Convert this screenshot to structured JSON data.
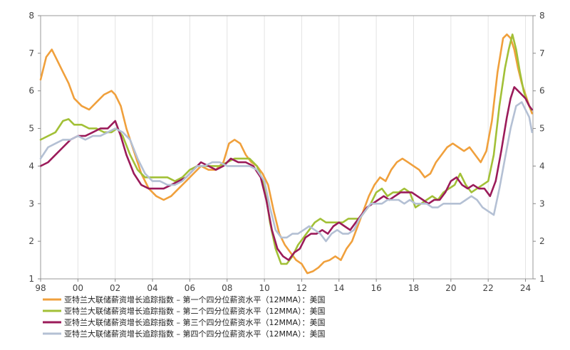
{
  "chart_data": {
    "type": "line",
    "title": "",
    "xlabel": "",
    "ylabel": "",
    "xlim": [
      1998.0,
      2024.4
    ],
    "ylim": [
      1,
      8
    ],
    "x_ticks": [
      {
        "value": 1998,
        "label": "98"
      },
      {
        "value": 2000,
        "label": "00"
      },
      {
        "value": 2002,
        "label": "02"
      },
      {
        "value": 2004,
        "label": "04"
      },
      {
        "value": 2006,
        "label": "06"
      },
      {
        "value": 2008,
        "label": "08"
      },
      {
        "value": 2010,
        "label": "10"
      },
      {
        "value": 2012,
        "label": "12"
      },
      {
        "value": 2014,
        "label": "14"
      },
      {
        "value": 2016,
        "label": "16"
      },
      {
        "value": 2018,
        "label": "18"
      },
      {
        "value": 2020,
        "label": "20"
      },
      {
        "value": 2022,
        "label": "22"
      },
      {
        "value": 2024,
        "label": "24"
      }
    ],
    "y_ticks": [
      {
        "value": 1,
        "label": "1"
      },
      {
        "value": 2,
        "label": "2"
      },
      {
        "value": 3,
        "label": "3"
      },
      {
        "value": 4,
        "label": "4"
      },
      {
        "value": 5,
        "label": "5"
      },
      {
        "value": 6,
        "label": "6"
      },
      {
        "value": 7,
        "label": "7"
      },
      {
        "value": 8,
        "label": "8"
      }
    ],
    "grid": "vertical",
    "legend_position": "bottom-left",
    "series": [
      {
        "name": "亚特兰大联储薪资增长追踪指数 – 第一个四分位薪资水平（12MMA）：美国",
        "color": "#f0a03c",
        "x": [
          1998.0,
          1998.3,
          1998.6,
          1998.9,
          1999.2,
          1999.5,
          1999.8,
          2000.2,
          2000.6,
          2001.0,
          2001.4,
          2001.8,
          2002.0,
          2002.3,
          2002.6,
          2003.0,
          2003.4,
          2003.8,
          2004.2,
          2004.6,
          2005.0,
          2005.4,
          2005.8,
          2006.2,
          2006.6,
          2007.0,
          2007.4,
          2007.8,
          2008.1,
          2008.4,
          2008.7,
          2009.0,
          2009.3,
          2009.6,
          2009.9,
          2010.2,
          2010.5,
          2010.8,
          2011.1,
          2011.4,
          2011.7,
          2012.0,
          2012.3,
          2012.6,
          2012.9,
          2013.2,
          2013.5,
          2013.8,
          2014.1,
          2014.4,
          2014.7,
          2015.0,
          2015.3,
          2015.6,
          2015.9,
          2016.2,
          2016.5,
          2016.8,
          2017.1,
          2017.4,
          2017.7,
          2018.0,
          2018.3,
          2018.6,
          2018.9,
          2019.2,
          2019.5,
          2019.8,
          2020.1,
          2020.4,
          2020.7,
          2021.0,
          2021.3,
          2021.6,
          2021.9,
          2022.2,
          2022.5,
          2022.8,
          2023.0,
          2023.2,
          2023.4,
          2023.6,
          2023.8,
          2024.0,
          2024.2,
          2024.35
        ],
        "y": [
          6.3,
          6.9,
          7.1,
          6.8,
          6.5,
          6.2,
          5.8,
          5.6,
          5.5,
          5.7,
          5.9,
          6.0,
          5.9,
          5.6,
          5.0,
          4.4,
          3.8,
          3.4,
          3.2,
          3.1,
          3.2,
          3.4,
          3.6,
          3.8,
          4.0,
          3.9,
          3.9,
          4.1,
          4.6,
          4.7,
          4.6,
          4.3,
          4.1,
          4.0,
          3.8,
          3.5,
          2.8,
          2.2,
          1.9,
          1.7,
          1.5,
          1.4,
          1.15,
          1.2,
          1.3,
          1.45,
          1.5,
          1.6,
          1.5,
          1.8,
          2.0,
          2.4,
          2.8,
          3.2,
          3.5,
          3.7,
          3.6,
          3.9,
          4.1,
          4.2,
          4.1,
          4.0,
          3.9,
          3.7,
          3.8,
          4.1,
          4.3,
          4.5,
          4.6,
          4.5,
          4.4,
          4.5,
          4.3,
          4.1,
          4.4,
          5.2,
          6.5,
          7.4,
          7.5,
          7.4,
          7.1,
          6.6,
          6.2,
          5.9,
          5.6,
          5.4
        ]
      },
      {
        "name": "亚特兰大联储薪资增长追踪指数 – 第二个四分位薪资水平（12MMA）：美国",
        "color": "#a2c037",
        "x": [
          1998.0,
          1998.4,
          1998.8,
          1999.2,
          1999.5,
          1999.8,
          2000.2,
          2000.6,
          2001.0,
          2001.4,
          2001.8,
          2002.1,
          2002.4,
          2002.8,
          2003.2,
          2003.6,
          2004.0,
          2004.4,
          2004.8,
          2005.2,
          2005.6,
          2006.0,
          2006.4,
          2006.8,
          2007.2,
          2007.6,
          2008.0,
          2008.4,
          2008.8,
          2009.2,
          2009.6,
          2010.0,
          2010.3,
          2010.6,
          2010.9,
          2011.2,
          2011.5,
          2011.8,
          2012.1,
          2012.4,
          2012.7,
          2013.0,
          2013.3,
          2013.6,
          2013.9,
          2014.2,
          2014.5,
          2014.8,
          2015.1,
          2015.4,
          2015.7,
          2016.0,
          2016.3,
          2016.6,
          2016.9,
          2017.2,
          2017.5,
          2017.8,
          2018.1,
          2018.4,
          2018.7,
          2019.0,
          2019.3,
          2019.6,
          2019.9,
          2020.2,
          2020.5,
          2020.8,
          2021.1,
          2021.4,
          2021.7,
          2022.0,
          2022.3,
          2022.6,
          2022.9,
          2023.1,
          2023.3,
          2023.5,
          2023.7,
          2023.9,
          2024.1,
          2024.3
        ],
        "y": [
          4.7,
          4.8,
          4.9,
          5.2,
          5.25,
          5.1,
          5.1,
          5.0,
          5.0,
          4.9,
          4.9,
          5.0,
          4.8,
          4.3,
          3.9,
          3.7,
          3.7,
          3.7,
          3.7,
          3.6,
          3.7,
          3.9,
          4.0,
          4.0,
          4.0,
          4.0,
          4.1,
          4.2,
          4.2,
          4.2,
          4.0,
          3.5,
          2.5,
          1.8,
          1.4,
          1.4,
          1.6,
          1.9,
          2.1,
          2.3,
          2.5,
          2.6,
          2.5,
          2.5,
          2.5,
          2.5,
          2.6,
          2.6,
          2.6,
          2.8,
          3.0,
          3.3,
          3.4,
          3.2,
          3.3,
          3.3,
          3.4,
          3.3,
          2.9,
          3.0,
          3.1,
          3.2,
          3.1,
          3.3,
          3.4,
          3.5,
          3.8,
          3.5,
          3.3,
          3.4,
          3.5,
          3.6,
          4.3,
          5.6,
          6.6,
          7.1,
          7.5,
          7.1,
          6.5,
          6.0,
          5.7,
          5.5
        ]
      },
      {
        "name": "亚特兰大联储薪资增长追踪指数 – 第三个四分位薪资水平（12MMA）：美国",
        "color": "#9b1b5a",
        "x": [
          1998.0,
          1998.4,
          1998.8,
          1999.2,
          1999.6,
          2000.0,
          2000.4,
          2000.8,
          2001.2,
          2001.6,
          2002.0,
          2002.3,
          2002.6,
          2003.0,
          2003.4,
          2003.8,
          2004.2,
          2004.6,
          2005.0,
          2005.4,
          2005.8,
          2006.2,
          2006.6,
          2007.0,
          2007.4,
          2007.8,
          2008.2,
          2008.6,
          2009.0,
          2009.4,
          2009.8,
          2010.1,
          2010.4,
          2010.7,
          2011.0,
          2011.3,
          2011.6,
          2011.9,
          2012.2,
          2012.5,
          2012.8,
          2013.1,
          2013.4,
          2013.7,
          2014.0,
          2014.3,
          2014.6,
          2014.9,
          2015.2,
          2015.5,
          2015.8,
          2016.1,
          2016.4,
          2016.7,
          2017.0,
          2017.3,
          2017.6,
          2017.9,
          2018.2,
          2018.5,
          2018.8,
          2019.1,
          2019.4,
          2019.7,
          2020.0,
          2020.3,
          2020.6,
          2020.9,
          2021.2,
          2021.5,
          2021.8,
          2022.1,
          2022.4,
          2022.7,
          2023.0,
          2023.2,
          2023.4,
          2023.6,
          2023.8,
          2024.0,
          2024.2,
          2024.35
        ],
        "y": [
          4.0,
          4.1,
          4.3,
          4.5,
          4.7,
          4.8,
          4.8,
          4.9,
          5.0,
          5.0,
          5.2,
          4.8,
          4.3,
          3.8,
          3.5,
          3.4,
          3.4,
          3.4,
          3.5,
          3.6,
          3.7,
          3.9,
          4.1,
          4.0,
          3.9,
          4.0,
          4.2,
          4.1,
          4.1,
          4.0,
          3.7,
          3.1,
          2.3,
          1.8,
          1.6,
          1.5,
          1.7,
          1.8,
          2.1,
          2.2,
          2.2,
          2.3,
          2.2,
          2.4,
          2.5,
          2.4,
          2.3,
          2.5,
          2.7,
          2.9,
          3.0,
          3.1,
          3.2,
          3.1,
          3.2,
          3.3,
          3.3,
          3.3,
          3.2,
          3.1,
          3.0,
          3.1,
          3.1,
          3.3,
          3.6,
          3.7,
          3.5,
          3.4,
          3.5,
          3.4,
          3.4,
          3.2,
          3.6,
          4.4,
          5.3,
          5.8,
          6.1,
          6.0,
          5.9,
          5.8,
          5.6,
          5.5
        ]
      },
      {
        "name": "亚特兰大联储薪资增长追踪指数 – 第四个四分位薪资水平（12MMA）：美国",
        "color": "#b4c0d4",
        "x": [
          1998.0,
          1998.4,
          1998.8,
          1999.2,
          1999.6,
          2000.0,
          2000.4,
          2000.8,
          2001.2,
          2001.6,
          2002.0,
          2002.4,
          2002.8,
          2003.2,
          2003.6,
          2004.0,
          2004.4,
          2004.8,
          2005.2,
          2005.6,
          2006.0,
          2006.4,
          2006.8,
          2007.2,
          2007.6,
          2008.0,
          2008.4,
          2008.8,
          2009.2,
          2009.6,
          2010.0,
          2010.3,
          2010.6,
          2010.9,
          2011.2,
          2011.5,
          2011.8,
          2012.1,
          2012.4,
          2012.7,
          2013.0,
          2013.3,
          2013.6,
          2013.9,
          2014.2,
          2014.5,
          2014.8,
          2015.1,
          2015.4,
          2015.7,
          2016.0,
          2016.3,
          2016.6,
          2016.9,
          2017.2,
          2017.5,
          2017.8,
          2018.1,
          2018.4,
          2018.7,
          2019.0,
          2019.3,
          2019.6,
          2019.9,
          2020.2,
          2020.5,
          2020.8,
          2021.1,
          2021.4,
          2021.7,
          2022.0,
          2022.3,
          2022.6,
          2022.9,
          2023.2,
          2023.5,
          2023.8,
          2024.0,
          2024.2,
          2024.35
        ],
        "y": [
          4.2,
          4.5,
          4.6,
          4.7,
          4.7,
          4.8,
          4.7,
          4.8,
          4.8,
          4.9,
          5.0,
          4.9,
          4.7,
          4.2,
          3.8,
          3.6,
          3.6,
          3.5,
          3.5,
          3.6,
          3.8,
          4.0,
          4.0,
          4.1,
          4.1,
          4.0,
          4.0,
          4.0,
          4.0,
          3.9,
          3.6,
          2.9,
          2.3,
          2.1,
          2.1,
          2.2,
          2.2,
          2.3,
          2.4,
          2.3,
          2.2,
          2.0,
          2.2,
          2.3,
          2.2,
          2.2,
          2.3,
          2.6,
          2.8,
          3.0,
          3.0,
          3.0,
          3.1,
          3.1,
          3.1,
          3.0,
          3.1,
          3.0,
          3.0,
          3.0,
          2.9,
          2.9,
          3.0,
          3.0,
          3.0,
          3.0,
          3.1,
          3.2,
          3.1,
          2.9,
          2.8,
          2.7,
          3.4,
          4.2,
          5.0,
          5.6,
          5.7,
          5.5,
          5.3,
          4.9
        ]
      }
    ]
  }
}
